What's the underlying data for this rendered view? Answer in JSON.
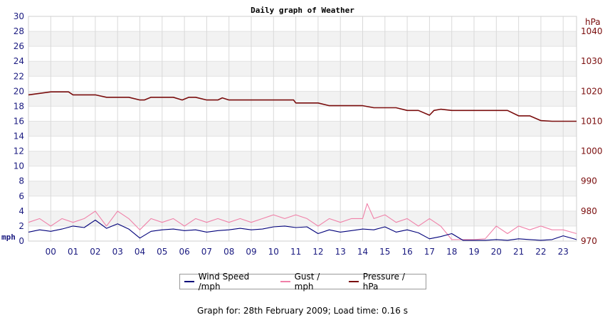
{
  "chart_data": {
    "type": "line",
    "title": "Daily graph of Weather",
    "left_axis": {
      "unit": "mph",
      "ylim": [
        0,
        30
      ],
      "ticks": [
        0,
        2,
        4,
        6,
        8,
        10,
        12,
        14,
        16,
        18,
        20,
        22,
        24,
        26,
        28,
        30
      ],
      "color": "#1a1a80"
    },
    "right_axis": {
      "unit": "hPa",
      "ylim": [
        970,
        1045
      ],
      "ticks": [
        970,
        980,
        990,
        1000,
        1010,
        1020,
        1030,
        1040
      ],
      "color": "#7a0d0d"
    },
    "x_ticks": [
      "00",
      "01",
      "02",
      "03",
      "04",
      "05",
      "06",
      "07",
      "08",
      "09",
      "10",
      "11",
      "12",
      "13",
      "14",
      "15",
      "16",
      "17",
      "18",
      "19",
      "20",
      "21",
      "22",
      "23"
    ],
    "x_range_hours": [
      -1,
      23.6
    ],
    "grid": true,
    "legend_position": "bottom",
    "series": [
      {
        "name": "Wind Speed /mph",
        "axis": "left",
        "color": "#00007a",
        "x": [
          -1,
          -0.5,
          0,
          0.5,
          1,
          1.5,
          2,
          2.5,
          3,
          3.5,
          4,
          4.5,
          5,
          5.5,
          6,
          6.5,
          7,
          7.5,
          8,
          8.5,
          9,
          9.5,
          10,
          10.5,
          11,
          11.5,
          12,
          12.5,
          13,
          13.5,
          14,
          14.5,
          15,
          15.5,
          16,
          16.5,
          17,
          17.5,
          18,
          18.5,
          19,
          19.5,
          20,
          20.5,
          21,
          21.5,
          22,
          22.5,
          23,
          23.6
        ],
        "y": [
          1.2,
          1.5,
          1.3,
          1.6,
          2.0,
          1.8,
          2.8,
          1.7,
          2.3,
          1.6,
          0.4,
          1.3,
          1.5,
          1.6,
          1.4,
          1.5,
          1.2,
          1.4,
          1.5,
          1.7,
          1.5,
          1.6,
          1.9,
          2.0,
          1.8,
          1.9,
          1.0,
          1.5,
          1.2,
          1.4,
          1.6,
          1.5,
          1.9,
          1.2,
          1.5,
          1.1,
          0.3,
          0.6,
          1.0,
          0.1,
          0.1,
          0.1,
          0.2,
          0.1,
          0.3,
          0.2,
          0.1,
          0.2,
          0.7,
          0.2
        ]
      },
      {
        "name": "Gust / mph",
        "axis": "left",
        "color": "#f080a8",
        "x": [
          -1,
          -0.5,
          0,
          0.5,
          1,
          1.5,
          2,
          2.5,
          3,
          3.5,
          4,
          4.5,
          5,
          5.5,
          6,
          6.5,
          7,
          7.5,
          8,
          8.5,
          9,
          9.5,
          10,
          10.5,
          11,
          11.5,
          12,
          12.5,
          13,
          13.5,
          14,
          14.2,
          14.5,
          15,
          15.5,
          16,
          16.5,
          17,
          17.5,
          18,
          18.5,
          19,
          19.5,
          20,
          20.5,
          21,
          21.5,
          22,
          22.5,
          23,
          23.6
        ],
        "y": [
          2.5,
          3.0,
          2.0,
          3.0,
          2.5,
          3.0,
          4.0,
          2.0,
          4.0,
          3.0,
          1.5,
          3.0,
          2.5,
          3.0,
          2.0,
          3.0,
          2.5,
          3.0,
          2.5,
          3.0,
          2.5,
          3.0,
          3.5,
          3.0,
          3.5,
          3.0,
          2.0,
          3.0,
          2.5,
          3.0,
          3.0,
          5.0,
          3.0,
          3.5,
          2.5,
          3.0,
          2.0,
          3.0,
          2.0,
          0.2,
          0.2,
          0.2,
          0.3,
          2.0,
          1.0,
          2.0,
          1.5,
          2.0,
          1.5,
          1.5,
          1.0
        ]
      },
      {
        "name": "Pressure / hPa",
        "axis": "right",
        "color": "#7a0d0d",
        "x": [
          -1,
          0,
          0.8,
          1,
          1.5,
          2,
          2.5,
          3,
          3.5,
          4,
          4.2,
          4.5,
          5,
          5.5,
          5.9,
          6.2,
          6.5,
          7,
          7.5,
          7.7,
          8,
          9,
          10,
          10.9,
          11,
          11.5,
          12,
          12.5,
          13,
          13.5,
          14,
          14.5,
          15,
          15.5,
          16,
          16.5,
          17,
          17.2,
          17.5,
          18,
          18.5,
          19,
          19.5,
          20,
          20.5,
          21,
          21.5,
          22,
          22.5,
          23,
          23.6
        ],
        "y": [
          1018.8,
          1019.8,
          1019.8,
          1018.8,
          1018.8,
          1018.8,
          1018.0,
          1018.0,
          1018.0,
          1017.1,
          1017.1,
          1018.0,
          1018.0,
          1018.0,
          1017.1,
          1018.0,
          1018.0,
          1017.1,
          1017.1,
          1017.8,
          1017.1,
          1017.1,
          1017.1,
          1017.1,
          1016.1,
          1016.1,
          1016.1,
          1015.2,
          1015.2,
          1015.2,
          1015.2,
          1014.5,
          1014.5,
          1014.5,
          1013.6,
          1013.6,
          1012.0,
          1013.6,
          1014.0,
          1013.6,
          1013.6,
          1013.6,
          1013.6,
          1013.6,
          1013.6,
          1011.8,
          1011.8,
          1010.2,
          1010.0,
          1010.0,
          1010.0
        ]
      }
    ]
  },
  "footer": {
    "text": "Graph for: 28th February 2009; Load time: 0.16 s"
  }
}
